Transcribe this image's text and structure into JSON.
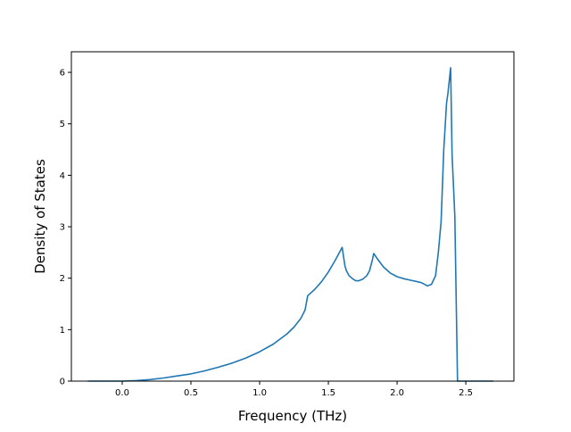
{
  "chart_data": {
    "type": "line",
    "title": "",
    "xlabel": "Frequency (THz)",
    "ylabel": "Density of States",
    "xlim": [
      -0.37,
      2.85
    ],
    "ylim": [
      0,
      6.4
    ],
    "xticks": [
      {
        "value": 0.0,
        "label": "0.0"
      },
      {
        "value": 0.5,
        "label": "0.5"
      },
      {
        "value": 1.0,
        "label": "1.0"
      },
      {
        "value": 1.5,
        "label": "1.5"
      },
      {
        "value": 2.0,
        "label": "2.0"
      },
      {
        "value": 2.5,
        "label": "2.5"
      }
    ],
    "yticks": [
      {
        "value": 0,
        "label": "0"
      },
      {
        "value": 1,
        "label": "1"
      },
      {
        "value": 2,
        "label": "2"
      },
      {
        "value": 3,
        "label": "3"
      },
      {
        "value": 4,
        "label": "4"
      },
      {
        "value": 5,
        "label": "5"
      },
      {
        "value": 6,
        "label": "6"
      }
    ],
    "grid": false,
    "legend": "none",
    "series": [
      {
        "color": "#1f77b4",
        "x": [
          -0.25,
          0.0,
          0.1,
          0.2,
          0.3,
          0.4,
          0.5,
          0.6,
          0.7,
          0.8,
          0.9,
          1.0,
          1.1,
          1.2,
          1.25,
          1.3,
          1.33,
          1.35,
          1.4,
          1.45,
          1.5,
          1.55,
          1.6,
          1.62,
          1.63,
          1.65,
          1.68,
          1.7,
          1.72,
          1.75,
          1.78,
          1.8,
          1.82,
          1.83,
          1.85,
          1.9,
          1.95,
          2.0,
          2.05,
          2.1,
          2.15,
          2.18,
          2.2,
          2.22,
          2.25,
          2.28,
          2.3,
          2.32,
          2.34,
          2.36,
          2.37,
          2.39,
          2.4,
          2.42,
          2.44,
          2.45,
          2.5,
          2.7
        ],
        "y": [
          0,
          0,
          0.01,
          0.03,
          0.06,
          0.1,
          0.14,
          0.2,
          0.27,
          0.35,
          0.45,
          0.57,
          0.72,
          0.92,
          1.05,
          1.22,
          1.38,
          1.66,
          1.78,
          1.93,
          2.12,
          2.35,
          2.6,
          2.25,
          2.15,
          2.05,
          1.98,
          1.95,
          1.95,
          1.98,
          2.05,
          2.15,
          2.35,
          2.48,
          2.4,
          2.22,
          2.1,
          2.03,
          1.99,
          1.96,
          1.93,
          1.91,
          1.88,
          1.85,
          1.88,
          2.05,
          2.5,
          3.1,
          4.5,
          5.4,
          5.6,
          6.09,
          4.4,
          3.2,
          0,
          0,
          0,
          0
        ]
      }
    ]
  }
}
